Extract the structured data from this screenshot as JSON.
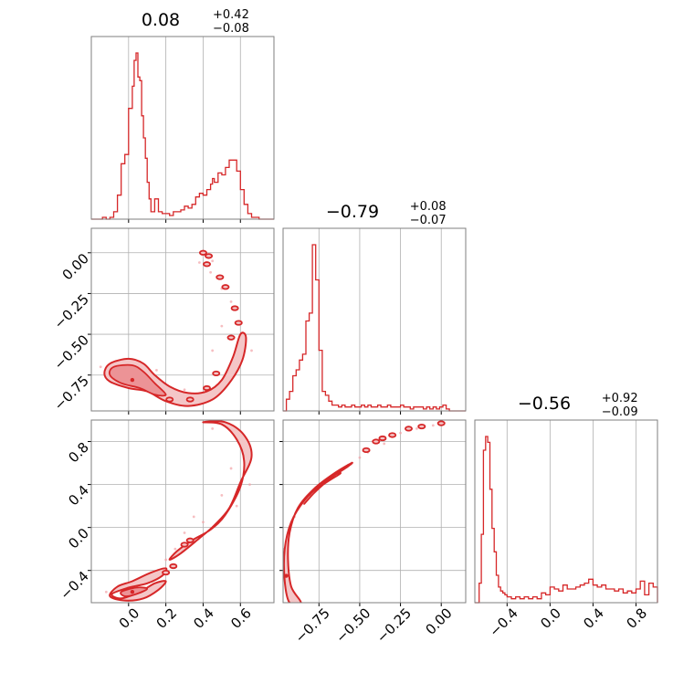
{
  "chart_data": {
    "type": "corner",
    "color": "#d62728",
    "fill_color": "#f4c6c7",
    "grid": true,
    "params": [
      {
        "title": {
          "main": "0.08",
          "sup": "+0.42",
          "sub": "−0.08"
        },
        "range": [
          -0.2,
          0.78
        ],
        "ticks": [
          0.0,
          0.2,
          0.4,
          0.6
        ],
        "tick_labels": [
          "0.0",
          "0.2",
          "0.4",
          "0.6"
        ],
        "hist_bin_edges": [
          -0.2,
          -0.14,
          -0.12,
          -0.1,
          -0.08,
          -0.06,
          -0.04,
          -0.02,
          0.0,
          0.02,
          0.03,
          0.04,
          0.05,
          0.06,
          0.07,
          0.08,
          0.09,
          0.1,
          0.11,
          0.12,
          0.14,
          0.16,
          0.18,
          0.2,
          0.22,
          0.24,
          0.26,
          0.28,
          0.3,
          0.32,
          0.34,
          0.36,
          0.38,
          0.4,
          0.42,
          0.44,
          0.45,
          0.46,
          0.48,
          0.5,
          0.52,
          0.54,
          0.56,
          0.58,
          0.6,
          0.62,
          0.64,
          0.66,
          0.7,
          0.78
        ],
        "hist_counts": [
          0,
          1,
          0,
          1,
          4,
          13,
          30,
          35,
          60,
          72,
          86,
          90,
          77,
          75,
          56,
          44,
          33,
          20,
          11,
          4,
          11,
          4,
          3,
          3,
          2,
          4,
          4,
          5,
          7,
          6,
          8,
          12,
          14,
          13,
          16,
          19,
          22,
          20,
          25,
          24,
          28,
          32,
          32,
          26,
          16,
          8,
          3,
          1,
          0
        ]
      },
      {
        "title": {
          "main": "−0.79",
          "sup": "+0.08",
          "sub": "−0.07"
        },
        "range": [
          -0.97,
          0.15
        ],
        "ticks": [
          -0.75,
          -0.5,
          -0.25,
          0.0
        ],
        "tick_labels": [
          "−0.75",
          "−0.50",
          "−0.25",
          "0.00"
        ],
        "hist_bin_edges": [
          -0.97,
          -0.95,
          -0.93,
          -0.91,
          -0.89,
          -0.87,
          -0.85,
          -0.83,
          -0.81,
          -0.79,
          -0.77,
          -0.75,
          -0.73,
          -0.71,
          -0.69,
          -0.67,
          -0.65,
          -0.63,
          -0.61,
          -0.59,
          -0.57,
          -0.55,
          -0.53,
          -0.51,
          -0.49,
          -0.47,
          -0.45,
          -0.43,
          -0.41,
          -0.39,
          -0.37,
          -0.35,
          -0.33,
          -0.31,
          -0.29,
          -0.27,
          -0.25,
          -0.23,
          -0.21,
          -0.19,
          -0.17,
          -0.15,
          -0.13,
          -0.11,
          -0.09,
          -0.07,
          -0.05,
          -0.03,
          -0.01,
          0.01,
          0.03,
          0.05,
          0.15
        ],
        "hist_counts": [
          0,
          6,
          10,
          18,
          21,
          26,
          29,
          46,
          50,
          85,
          67,
          31,
          10,
          8,
          5,
          3,
          3,
          2,
          3,
          2,
          2,
          3,
          2,
          2,
          3,
          2,
          3,
          2,
          2,
          3,
          2,
          2,
          3,
          2,
          2,
          2,
          3,
          2,
          2,
          1,
          2,
          2,
          2,
          1,
          2,
          1,
          2,
          1,
          2,
          3,
          1,
          0
        ]
      },
      {
        "title": {
          "main": "−0.56",
          "sup": "+0.92",
          "sub": "−0.09"
        },
        "range": [
          -0.7,
          1.0
        ],
        "ticks": [
          -0.4,
          0.0,
          0.4,
          0.8
        ],
        "tick_labels": [
          "−0.4",
          "0.0",
          "0.4",
          "0.8"
        ],
        "hist_bin_edges": [
          -0.7,
          -0.66,
          -0.64,
          -0.62,
          -0.6,
          -0.58,
          -0.56,
          -0.54,
          -0.52,
          -0.5,
          -0.48,
          -0.46,
          -0.44,
          -0.42,
          -0.4,
          -0.38,
          -0.36,
          -0.32,
          -0.28,
          -0.24,
          -0.2,
          -0.16,
          -0.12,
          -0.08,
          -0.04,
          0.0,
          0.04,
          0.08,
          0.12,
          0.16,
          0.2,
          0.24,
          0.28,
          0.32,
          0.36,
          0.4,
          0.44,
          0.48,
          0.52,
          0.56,
          0.6,
          0.64,
          0.68,
          0.72,
          0.76,
          0.8,
          0.84,
          0.88,
          0.92,
          0.96,
          1.0
        ],
        "hist_counts": [
          0,
          10,
          35,
          78,
          85,
          82,
          58,
          38,
          26,
          14,
          8,
          6,
          5,
          4,
          3,
          3,
          2,
          3,
          2,
          3,
          2,
          3,
          2,
          5,
          4,
          8,
          7,
          6,
          9,
          7,
          7,
          8,
          9,
          10,
          12,
          9,
          8,
          9,
          7,
          7,
          6,
          7,
          5,
          6,
          5,
          7,
          11,
          4,
          10,
          8
        ]
      }
    ],
    "pairs": [
      {
        "x": 0,
        "y": 1,
        "outer": [
          [
            -0.1,
            -0.68
          ],
          [
            0.0,
            -0.65
          ],
          [
            0.08,
            -0.68
          ],
          [
            0.14,
            -0.75
          ],
          [
            0.22,
            -0.82
          ],
          [
            0.32,
            -0.86
          ],
          [
            0.42,
            -0.85
          ],
          [
            0.5,
            -0.78
          ],
          [
            0.56,
            -0.64
          ],
          [
            0.6,
            -0.5
          ],
          [
            0.63,
            -0.52
          ],
          [
            0.61,
            -0.66
          ],
          [
            0.54,
            -0.8
          ],
          [
            0.45,
            -0.9
          ],
          [
            0.32,
            -0.94
          ],
          [
            0.2,
            -0.91
          ],
          [
            0.1,
            -0.85
          ],
          [
            0.0,
            -0.83
          ],
          [
            -0.1,
            -0.79
          ],
          [
            -0.13,
            -0.74
          ]
        ],
        "inner": [
          [
            -0.08,
            -0.7
          ],
          [
            0.02,
            -0.69
          ],
          [
            0.08,
            -0.73
          ],
          [
            0.14,
            -0.8
          ],
          [
            0.2,
            -0.87
          ],
          [
            0.14,
            -0.87
          ],
          [
            0.06,
            -0.83
          ],
          [
            -0.04,
            -0.8
          ],
          [
            -0.1,
            -0.75
          ]
        ],
        "blobs": [
          [
            0.4,
            0.0
          ],
          [
            0.43,
            -0.02
          ],
          [
            0.42,
            -0.07
          ],
          [
            0.49,
            -0.15
          ],
          [
            0.52,
            -0.21
          ],
          [
            0.57,
            -0.34
          ],
          [
            0.59,
            -0.43
          ],
          [
            0.55,
            -0.52
          ],
          [
            0.47,
            -0.74
          ],
          [
            0.42,
            -0.83
          ],
          [
            0.33,
            -0.9
          ],
          [
            0.22,
            -0.9
          ]
        ],
        "core": [
          0.02,
          -0.78
        ],
        "scatter_cloud": [
          [
            0.4,
            -0.01
          ],
          [
            0.45,
            -0.05
          ],
          [
            0.5,
            -0.22
          ],
          [
            0.55,
            -0.3
          ],
          [
            0.6,
            -0.42
          ],
          [
            0.35,
            -0.9
          ],
          [
            0.25,
            -0.88
          ],
          [
            -0.15,
            -0.7
          ],
          [
            0.62,
            -0.55
          ],
          [
            0.45,
            -0.6
          ],
          [
            0.5,
            -0.45
          ],
          [
            0.44,
            -0.12
          ],
          [
            0.38,
            -0.06
          ],
          [
            0.66,
            -0.6
          ],
          [
            0.15,
            -0.72
          ],
          [
            0.3,
            -0.84
          ]
        ]
      },
      {
        "x": 0,
        "y": 2,
        "outer": [
          [
            -0.09,
            -0.62
          ],
          [
            0.0,
            -0.56
          ],
          [
            0.1,
            -0.52
          ],
          [
            0.18,
            -0.45
          ],
          [
            0.2,
            -0.38
          ],
          [
            0.12,
            -0.42
          ],
          [
            0.02,
            -0.5
          ],
          [
            -0.06,
            -0.55
          ],
          [
            -0.1,
            -0.64
          ],
          [
            -0.02,
            -0.68
          ],
          [
            0.08,
            -0.66
          ],
          [
            0.16,
            -0.58
          ],
          [
            0.2,
            -0.5
          ],
          [
            0.14,
            -0.52
          ],
          [
            0.06,
            -0.6
          ],
          [
            -0.04,
            -0.66
          ]
        ],
        "inner": [
          [
            -0.04,
            -0.6
          ],
          [
            0.04,
            -0.56
          ],
          [
            0.1,
            -0.57
          ],
          [
            0.04,
            -0.62
          ],
          [
            -0.02,
            -0.64
          ]
        ],
        "ribbon": [
          [
            0.4,
            0.98
          ],
          [
            0.5,
            0.96
          ],
          [
            0.58,
            0.82
          ],
          [
            0.62,
            0.62
          ],
          [
            0.6,
            0.38
          ],
          [
            0.52,
            0.12
          ],
          [
            0.44,
            -0.02
          ],
          [
            0.34,
            -0.12
          ],
          [
            0.26,
            -0.22
          ],
          [
            0.22,
            -0.3
          ],
          [
            0.28,
            -0.24
          ],
          [
            0.38,
            -0.1
          ],
          [
            0.46,
            0.02
          ],
          [
            0.54,
            0.18
          ],
          [
            0.6,
            0.42
          ],
          [
            0.66,
            0.66
          ],
          [
            0.62,
            0.86
          ],
          [
            0.52,
            0.98
          ]
        ],
        "blobs": [
          [
            0.3,
            -0.16
          ],
          [
            0.33,
            -0.12
          ],
          [
            0.2,
            -0.42
          ],
          [
            0.24,
            -0.36
          ]
        ],
        "core": [
          0.02,
          -0.6
        ],
        "scatter_cloud": [
          [
            0.3,
            -0.05
          ],
          [
            0.35,
            0.1
          ],
          [
            0.5,
            0.3
          ],
          [
            0.55,
            0.55
          ],
          [
            0.62,
            0.7
          ],
          [
            0.45,
            0.92
          ],
          [
            0.2,
            -0.3
          ],
          [
            0.1,
            -0.45
          ],
          [
            0.4,
            0.05
          ],
          [
            0.65,
            0.4
          ],
          [
            0.58,
            0.2
          ],
          [
            -0.12,
            -0.6
          ],
          [
            0.25,
            -0.2
          ]
        ]
      },
      {
        "x": 1,
        "y": 2,
        "outer": [
          [
            -0.93,
            -0.7
          ],
          [
            -0.96,
            -0.5
          ],
          [
            -0.96,
            -0.2
          ],
          [
            -0.92,
            0.05
          ],
          [
            -0.84,
            0.25
          ],
          [
            -0.72,
            0.42
          ],
          [
            -0.58,
            0.56
          ],
          [
            -0.55,
            0.6
          ],
          [
            -0.66,
            0.5
          ],
          [
            -0.78,
            0.36
          ],
          [
            -0.88,
            0.18
          ],
          [
            -0.93,
            -0.05
          ],
          [
            -0.94,
            -0.3
          ],
          [
            -0.92,
            -0.55
          ],
          [
            -0.86,
            -0.7
          ]
        ],
        "inner": [
          [
            -0.84,
            0.22
          ],
          [
            -0.74,
            0.38
          ],
          [
            -0.62,
            0.5
          ],
          [
            -0.66,
            0.48
          ],
          [
            -0.78,
            0.32
          ]
        ],
        "blobs": [
          [
            -0.4,
            0.8
          ],
          [
            -0.36,
            0.83
          ],
          [
            -0.3,
            0.86
          ],
          [
            -0.2,
            0.92
          ],
          [
            -0.12,
            0.94
          ],
          [
            0.0,
            0.97
          ],
          [
            -0.46,
            0.72
          ]
        ],
        "core": [
          -0.95,
          -0.45
        ],
        "scatter_cloud": [
          [
            -0.5,
            0.65
          ],
          [
            -0.45,
            0.7
          ],
          [
            -0.55,
            0.6
          ],
          [
            -0.25,
            0.88
          ],
          [
            -0.15,
            0.92
          ],
          [
            -0.05,
            0.95
          ],
          [
            -0.9,
            0.1
          ],
          [
            -0.8,
            0.3
          ],
          [
            -0.6,
            0.55
          ],
          [
            -0.35,
            0.78
          ],
          [
            -0.97,
            -0.2
          ],
          [
            -0.7,
            0.45
          ]
        ]
      }
    ]
  }
}
